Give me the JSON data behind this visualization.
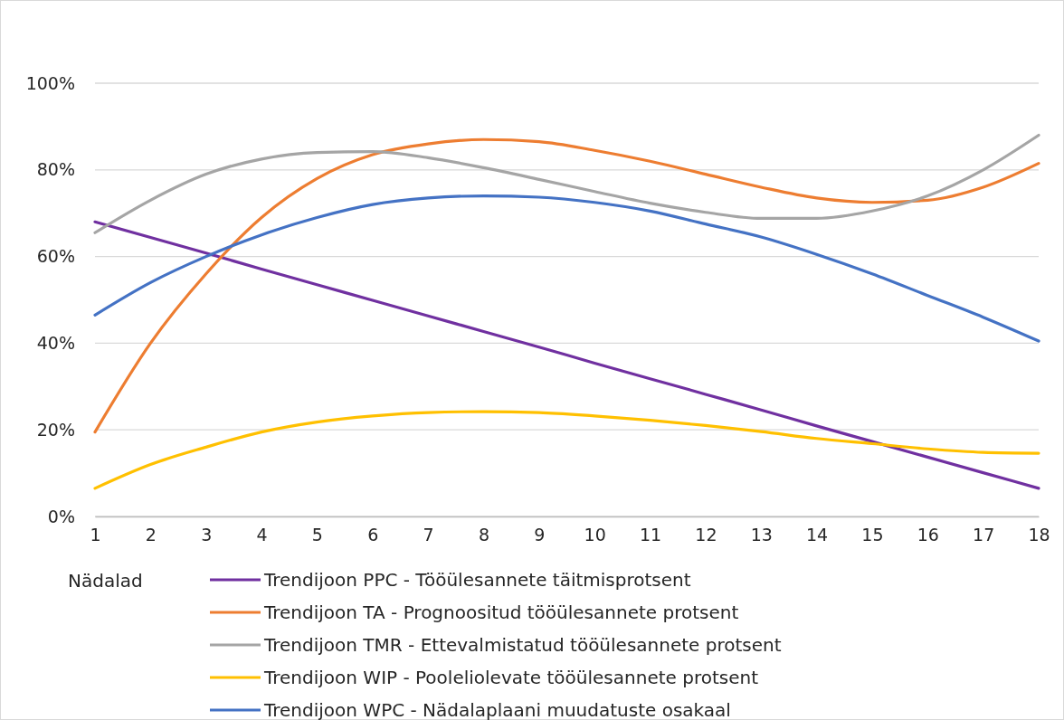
{
  "chart_data": {
    "type": "line",
    "xlabel": "Nädalad",
    "x": [
      1,
      2,
      3,
      4,
      5,
      6,
      7,
      8,
      9,
      10,
      11,
      12,
      13,
      14,
      15,
      16,
      17,
      18
    ],
    "xlim": [
      1,
      18
    ],
    "xticks": [
      1,
      2,
      3,
      4,
      5,
      6,
      7,
      8,
      9,
      10,
      11,
      12,
      13,
      14,
      15,
      16,
      17,
      18
    ],
    "ylim": [
      0,
      100
    ],
    "yticks": [
      {
        "value": 0,
        "label": "0%"
      },
      {
        "value": 20,
        "label": "20%"
      },
      {
        "value": 40,
        "label": "40%"
      },
      {
        "value": 60,
        "label": "60%"
      },
      {
        "value": 80,
        "label": "80%"
      },
      {
        "value": 100,
        "label": "100%"
      }
    ],
    "grid": "y",
    "legend": "bottom",
    "marker": "none",
    "line_style": "solid",
    "series": [
      {
        "name": "Trendijoon PPC - Tööülesannete täitmisprotsent",
        "color": "#7030a0",
        "values": [
          68,
          64.4,
          60.8,
          57.1,
          53.5,
          49.9,
          46.3,
          42.7,
          39.1,
          35.4,
          31.8,
          28.2,
          24.6,
          20.9,
          17.3,
          13.7,
          10.1,
          6.5
        ]
      },
      {
        "name": "Trendijoon TA - Prognoositud tööülesannete protsent",
        "color": "#ed7d31",
        "values": [
          19.5,
          40,
          56,
          69,
          78,
          83.5,
          86,
          87,
          86.5,
          84.5,
          82,
          79,
          76,
          73.5,
          72.5,
          73,
          76,
          81.5
        ]
      },
      {
        "name": "Trendijoon TMR - Ettevalmistatud tööülesannete protsent",
        "color": "#a5a5a5",
        "values": [
          65.5,
          73,
          79,
          82.5,
          84,
          84.2,
          82.8,
          80.5,
          77.8,
          75,
          72.3,
          70.2,
          68.8,
          68.8,
          70.5,
          74,
          80,
          88
        ]
      },
      {
        "name": "Trendijoon WIP - Pooleliolevate tööülesannete protsent",
        "color": "#ffc000",
        "values": [
          6.5,
          12,
          16,
          19.5,
          21.8,
          23.2,
          24,
          24.2,
          24,
          23.2,
          22.2,
          21,
          19.6,
          18,
          16.8,
          15.6,
          14.8,
          14.6
        ]
      },
      {
        "name": "Trendijoon WPC - Nädalaplaani muudatuste osakaal",
        "color": "#4472c4",
        "values": [
          46.5,
          54,
          60,
          65,
          69,
          72,
          73.5,
          74,
          73.7,
          72.5,
          70.5,
          67.5,
          64.5,
          60.5,
          56,
          51,
          46,
          40.5
        ]
      }
    ]
  }
}
